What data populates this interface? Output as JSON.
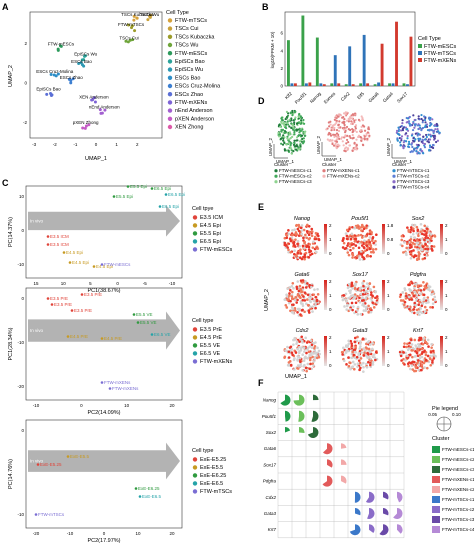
{
  "panels": {
    "A": {
      "label": "A",
      "xlabel": "UMAP_1",
      "ylabel": "UMAP_2",
      "legend_title": "Cell Type",
      "legend": [
        {
          "name": "FTW-mTSCs",
          "color": "#d6a23b"
        },
        {
          "name": "TSCs Cui",
          "color": "#c9a13a"
        },
        {
          "name": "TSCs Kubaczka",
          "color": "#9c9c2a"
        },
        {
          "name": "TSCs Wu",
          "color": "#6fa53b"
        },
        {
          "name": "FTW-mESCs",
          "color": "#2c9a5b"
        },
        {
          "name": "EpiSCs Bao",
          "color": "#2aa39a"
        },
        {
          "name": "EpiSCs Wu",
          "color": "#2c98b3"
        },
        {
          "name": "ESCs Bao",
          "color": "#2e8ec7"
        },
        {
          "name": "ESCs Cruz-Molina",
          "color": "#3d7fd1"
        },
        {
          "name": "ESCs Zhao",
          "color": "#5b6fd6"
        },
        {
          "name": "FTW-mXENs",
          "color": "#7d63d6"
        },
        {
          "name": "nEnd Anderson",
          "color": "#a25fd0"
        },
        {
          "name": "pXEN Anderson",
          "color": "#c55bc6"
        },
        {
          "name": "XEN Zhong",
          "color": "#dd5aa8"
        }
      ],
      "point_labels": [
        {
          "t": "TSCs Kubaczka",
          "x": 2.0,
          "y": 3.3
        },
        {
          "t": "TSCs Wu",
          "x": 2.6,
          "y": 3.3
        },
        {
          "t": "FTW-mTSCs",
          "x": 1.7,
          "y": 2.8
        },
        {
          "t": "TSCs Cui",
          "x": 1.6,
          "y": 2.1
        },
        {
          "t": "FTW-mESCs",
          "x": -1.7,
          "y": 1.8
        },
        {
          "t": "EpiSCs Wu",
          "x": -0.5,
          "y": 1.3
        },
        {
          "t": "ESCs Bao",
          "x": -0.7,
          "y": 0.9
        },
        {
          "t": "ESCs Cruz-Molina",
          "x": -2.0,
          "y": 0.4
        },
        {
          "t": "ESCs Zhao",
          "x": -1.2,
          "y": 0.1
        },
        {
          "t": "EpiSCs Bao",
          "x": -2.3,
          "y": -0.5
        },
        {
          "t": "XEN Anderson",
          "x": -0.1,
          "y": -0.9
        },
        {
          "t": "nEnd Anderson",
          "x": 0.4,
          "y": -1.4
        },
        {
          "t": "pXEN Zhong",
          "x": -0.5,
          "y": -2.2
        }
      ],
      "x_ticks": [
        "-3",
        "-2",
        "-1",
        "0",
        "1",
        "2"
      ],
      "y_ticks": [
        "2",
        "0",
        "-2"
      ]
    },
    "B": {
      "label": "B",
      "ylabel": "log10(FPKM + 10)",
      "legend_title": "Cell Type",
      "genes": [
        "Klf2",
        "Pou5f1",
        "Nanog",
        "Eomes",
        "Cdx2",
        "Elf5",
        "Gata6",
        "Gata4",
        "Sox17"
      ],
      "series": [
        {
          "name": "FTW-mESCs",
          "color": "#3aa14a",
          "values": [
            5.2,
            8.0,
            5.5,
            0.3,
            0.2,
            0.3,
            0.2,
            0.3,
            0.3
          ]
        },
        {
          "name": "FTW-mTSCs",
          "color": "#2f73b8",
          "values": [
            0.3,
            0.3,
            0.3,
            3.5,
            4.5,
            5.8,
            0.4,
            0.3,
            0.2
          ]
        },
        {
          "name": "FTW-mXENs",
          "color": "#d23a2e",
          "values": [
            0.3,
            0.4,
            0.2,
            0.3,
            0.2,
            0.3,
            4.8,
            7.3,
            5.6
          ]
        }
      ],
      "y_ticks": [
        "0",
        "2",
        "4",
        "6"
      ]
    },
    "C": {
      "label": "C",
      "plots": [
        {
          "ylabel": "PC(14.37%)",
          "xlabel": "PC1(38.67%)",
          "legend_title": "Cell tpye",
          "x_ticks": [
            "15",
            "10",
            "5",
            "0",
            "-5",
            "-10"
          ],
          "y_ticks": [
            "10",
            "0",
            "-10"
          ],
          "band_label": "In vivo",
          "legend": [
            {
              "name": "E3.5 ICM",
              "color": "#e0443a"
            },
            {
              "name": "E4.5 Epi",
              "color": "#c79a22"
            },
            {
              "name": "E5.5 Epi",
              "color": "#2f9a3f"
            },
            {
              "name": "E6.5 Epi",
              "color": "#24a3a8"
            },
            {
              "name": "FTW-mESCs",
              "color": "#7a6dd3"
            }
          ],
          "labels": [
            {
              "t": "E3.5 ICM",
              "x": 50,
              "y": 238,
              "c": "#e0443a"
            },
            {
              "t": "E3.5 ICM",
              "x": 50,
              "y": 246,
              "c": "#e0443a"
            },
            {
              "t": "E4.5 Epi",
              "x": 66,
              "y": 254,
              "c": "#c79a22"
            },
            {
              "t": "E4.5 Epi",
              "x": 72,
              "y": 264,
              "c": "#c79a22"
            },
            {
              "t": "E4.5 Epi",
              "x": 96,
              "y": 268,
              "c": "#c79a22"
            },
            {
              "t": "E5.5 Epi",
              "x": 130,
              "y": 188,
              "c": "#2f9a3f"
            },
            {
              "t": "E6.5 Epi",
              "x": 154,
              "y": 190,
              "c": "#2f9a3f"
            },
            {
              "t": "E5.5 Epi",
              "x": 116,
              "y": 198,
              "c": "#2f9a3f"
            },
            {
              "t": "E6.5 Epi",
              "x": 168,
              "y": 196,
              "c": "#24a3a8"
            },
            {
              "t": "E6.5 Epi",
              "x": 162,
              "y": 208,
              "c": "#24a3a8"
            },
            {
              "t": "FTW-mESCs",
              "x": 104,
              "y": 266,
              "c": "#7a6dd3"
            }
          ]
        },
        {
          "ylabel": "PC1(28.34%)",
          "xlabel": "PC2(14.09%)",
          "legend_title": "Cell type",
          "x_ticks": [
            "-10",
            "0",
            "10",
            "20"
          ],
          "y_ticks": [
            "0",
            "-10",
            "-20"
          ],
          "band_label": "In vivo",
          "legend": [
            {
              "name": "E3.5 PrE",
              "color": "#e0443a"
            },
            {
              "name": "E4.5 PrE",
              "color": "#c79a22"
            },
            {
              "name": "E5.5 VE",
              "color": "#2f9a3f"
            },
            {
              "name": "E6.5 VE",
              "color": "#24a3a8"
            },
            {
              "name": "FTW-mXENs",
              "color": "#7a6dd3"
            }
          ],
          "labels": [
            {
              "t": "E3.5 PrE",
              "x": 50,
              "y": 300,
              "c": "#e0443a"
            },
            {
              "t": "E3.5 PrE",
              "x": 84,
              "y": 296,
              "c": "#e0443a"
            },
            {
              "t": "E3.5 PrE",
              "x": 54,
              "y": 306,
              "c": "#e0443a"
            },
            {
              "t": "E3.5 PrE",
              "x": 74,
              "y": 312,
              "c": "#e0443a"
            },
            {
              "t": "E5.5 VE",
              "x": 136,
              "y": 316,
              "c": "#2f9a3f"
            },
            {
              "t": "E5.5 VE",
              "x": 140,
              "y": 324,
              "c": "#2f9a3f"
            },
            {
              "t": "E4.5 PrE",
              "x": 70,
              "y": 338,
              "c": "#c79a22"
            },
            {
              "t": "E4.5 PrE",
              "x": 104,
              "y": 340,
              "c": "#c79a22"
            },
            {
              "t": "E6.5 VE",
              "x": 154,
              "y": 336,
              "c": "#24a3a8"
            },
            {
              "t": "FTW-mXENs",
              "x": 104,
              "y": 384,
              "c": "#7a6dd3"
            },
            {
              "t": "FTW-mXENs",
              "x": 112,
              "y": 390,
              "c": "#7a6dd3"
            }
          ]
        },
        {
          "ylabel": "PC(14.76%)",
          "xlabel": "PC2(17.97%)",
          "legend_title": "Cell type",
          "x_ticks": [
            "-20",
            "-10",
            "0",
            "10",
            "20"
          ],
          "y_ticks": [
            "0",
            "-10"
          ],
          "band_label": "In vivo",
          "legend": [
            {
              "name": "ExE-E5.25",
              "color": "#e0443a"
            },
            {
              "name": "ExE-E5.5",
              "color": "#c79a22"
            },
            {
              "name": "ExE-E6.25",
              "color": "#2f9a3f"
            },
            {
              "name": "ExE-E6.5",
              "color": "#24a3a8"
            },
            {
              "name": "FTW-mTSCs",
              "color": "#7a6dd3"
            }
          ],
          "labels": [
            {
              "t": "ExE-E5.5",
              "x": 70,
              "y": 458,
              "c": "#c79a22"
            },
            {
              "t": "ExE-E5.25",
              "x": 40,
              "y": 466,
              "c": "#e0443a"
            },
            {
              "t": "ExE-E6.25",
              "x": 138,
              "y": 490,
              "c": "#2f9a3f"
            },
            {
              "t": "ExE-E6.5",
              "x": 142,
              "y": 498,
              "c": "#24a3a8"
            },
            {
              "t": "FTW-mTSCs",
              "x": 38,
              "y": 516,
              "c": "#7a6dd3"
            }
          ]
        }
      ]
    },
    "D": {
      "label": "D",
      "ylabel": "UMAP_2",
      "xlabel": "UMAP_1",
      "legend_title": "Cluster",
      "groups": [
        {
          "items": [
            {
              "name": "FTW-mESCs-c1",
              "color": "#1f7a3a"
            },
            {
              "name": "FTW-mESCs-c2",
              "color": "#41a85a"
            },
            {
              "name": "FTW-mESCs-c3",
              "color": "#8ed38f"
            }
          ]
        },
        {
          "items": [
            {
              "name": "FTW-mXENs-c1",
              "color": "#e07a7a"
            },
            {
              "name": "FTW-mXENs-c2",
              "color": "#f4b8b8"
            }
          ]
        },
        {
          "items": [
            {
              "name": "FTW-mTSCs-c1",
              "color": "#2f8fd0"
            },
            {
              "name": "FTW-mTSCs-c2",
              "color": "#5c7fd6"
            },
            {
              "name": "FTW-mTSCs-c3",
              "color": "#8b6cc8"
            },
            {
              "name": "FTW-mTSCs-c4",
              "color": "#4a3f9a"
            }
          ]
        }
      ]
    },
    "E": {
      "label": "E",
      "ylabel": "UMAP_2",
      "xlabel": "UMAP_1",
      "genes": [
        {
          "name": "Nanog",
          "max": "2",
          "mid": "1",
          "min": "0"
        },
        {
          "name": "Pou5f1",
          "max": "1.8",
          "mid": "0.8",
          "min": "0"
        },
        {
          "name": "Sox2",
          "max": "2",
          "mid": "1",
          "min": "0"
        },
        {
          "name": "Gata6",
          "max": "2",
          "mid": "1",
          "min": "0"
        },
        {
          "name": "Sox17",
          "max": "2",
          "mid": "1",
          "min": "0"
        },
        {
          "name": "Pdgfra",
          "max": "2",
          "mid": "1",
          "min": "0"
        },
        {
          "name": "Cdx2",
          "max": "2",
          "mid": "1",
          "min": "0"
        },
        {
          "name": "Gata3",
          "max": "2",
          "mid": "1",
          "min": "0"
        },
        {
          "name": "Krt7",
          "max": "2",
          "mid": "1",
          "min": "0"
        }
      ]
    },
    "F": {
      "label": "F",
      "pie_legend_title": "Pie legend",
      "pie_legend_ticks": [
        "0.05",
        "0.10"
      ],
      "cluster_title": "Cluster",
      "genes": [
        "Nanog",
        "Pou5f1",
        "Sox2",
        "Gata6",
        "Sox17",
        "Pdgfra",
        "Cdx2",
        "Gata3",
        "Krt7"
      ],
      "clusters": [
        {
          "name": "FTW-mESCs-c1",
          "color": "#1f9a4a"
        },
        {
          "name": "FTW-mESCs-c2",
          "color": "#6bbf5a"
        },
        {
          "name": "FTW-mESCs-c3",
          "color": "#2d6b3a"
        },
        {
          "name": "FTW-mXENs-c1",
          "color": "#e25a5a"
        },
        {
          "name": "FTW-mXENs-c2",
          "color": "#f2a8a8"
        },
        {
          "name": "FTW-mTSCs-c1",
          "color": "#3b78c9"
        },
        {
          "name": "FTW-mTSCs-c2",
          "color": "#8a6cc8"
        },
        {
          "name": "FTW-mTSCs-c3",
          "color": "#6a4aa8"
        },
        {
          "name": "FTW-mTSCs-c4",
          "color": "#b58ad6"
        }
      ]
    }
  }
}
